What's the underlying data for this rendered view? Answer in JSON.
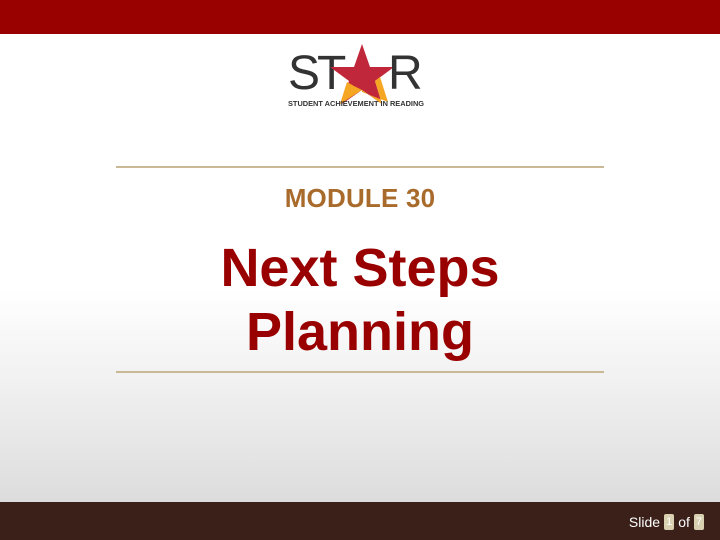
{
  "header": {
    "accent_color": "#990000"
  },
  "logo": {
    "wordmark": "STAR",
    "tagline": "STUDENT ACHIEVEMENT IN READING",
    "star_colors": [
      "#c0273a",
      "#f5a623"
    ]
  },
  "content": {
    "module_label": "MODULE 30",
    "title_line1": "Next Steps",
    "title_line2": "Planning",
    "module_color": "#a96b2c",
    "title_color": "#990000",
    "rule_color": "#cbb996"
  },
  "footer": {
    "background": "#3a2019",
    "slide_word": "Slide",
    "current_slide": "1",
    "of_word": "of",
    "total_slides": "7"
  }
}
